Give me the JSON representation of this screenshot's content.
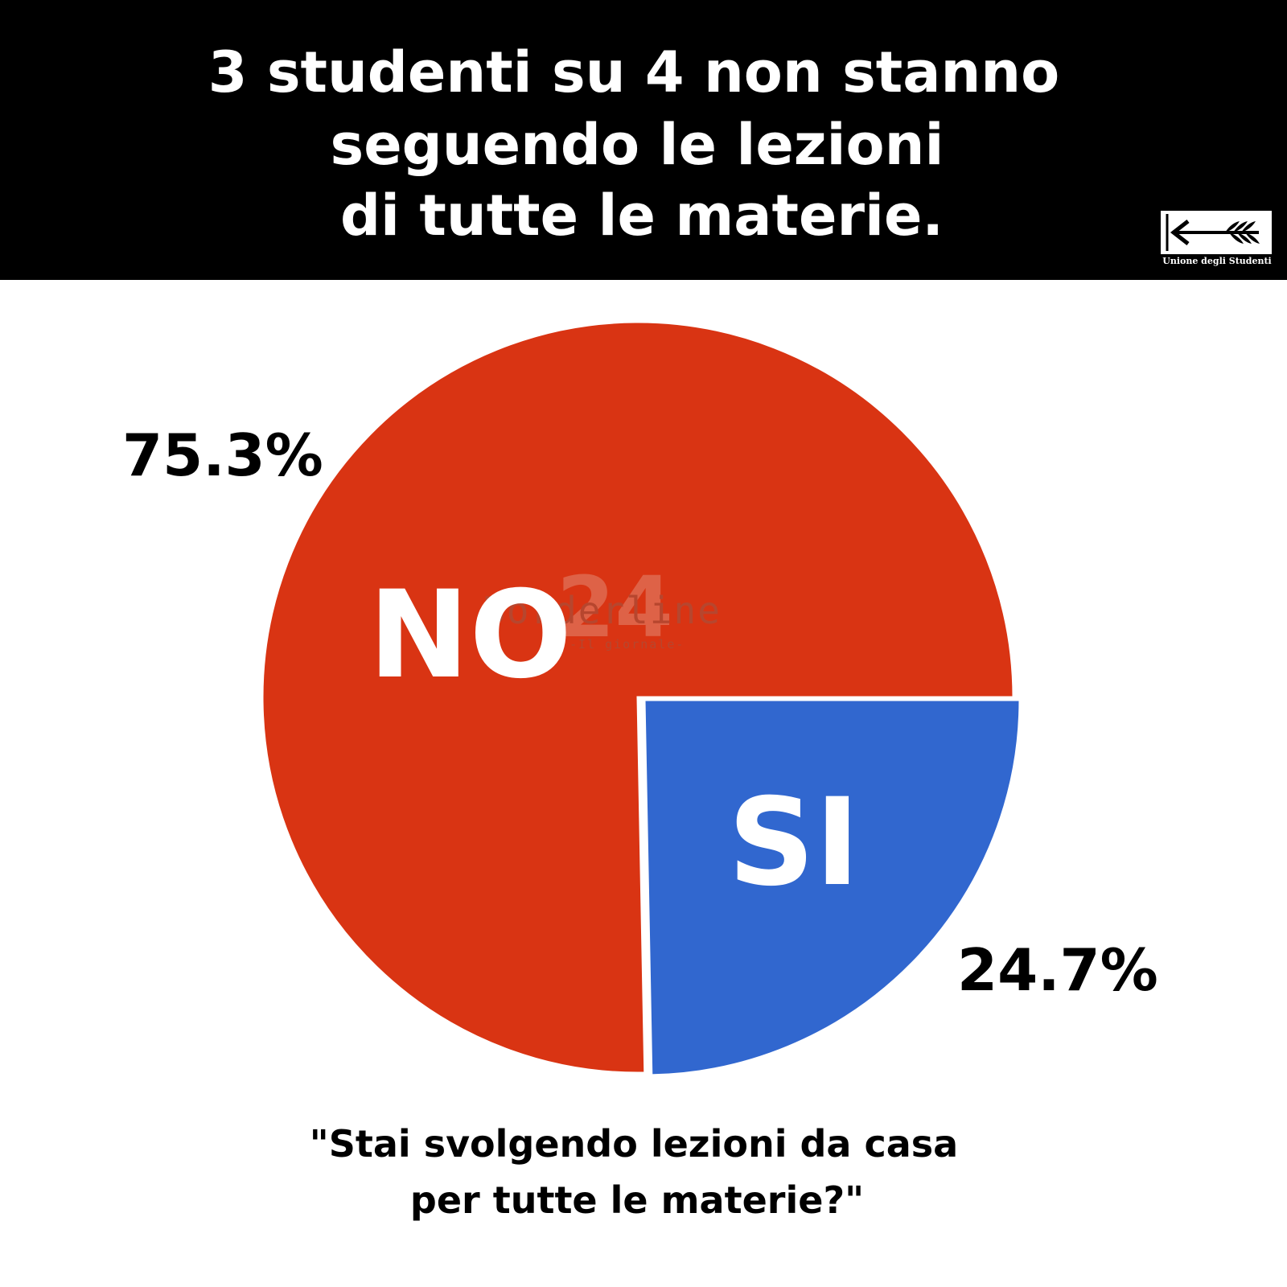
{
  "header": {
    "title_lines": [
      "3 studenti su 4 non stanno",
      "seguendo le lezioni",
      "di tutte le materie."
    ],
    "logo_text": "Unione degli Studenti"
  },
  "chart_data": {
    "type": "pie",
    "title": "3 studenti su 4 non stanno seguendo le lezioni di tutte le materie.",
    "question_lines": [
      "\"Stai svolgendo lezioni da casa",
      "per tutte le materie?\""
    ],
    "slices": [
      {
        "label": "NO",
        "value": 75.3,
        "value_label": "75.3%",
        "color": "#d93413"
      },
      {
        "label": "SI",
        "value": 24.7,
        "value_label": "24.7%",
        "color": "#3167cf"
      }
    ],
    "start": "3 o'clock, counter-clockwise for NO"
  },
  "watermark": {
    "number": "24",
    "name": "Borderline",
    "sub": "-Il giornale-"
  }
}
